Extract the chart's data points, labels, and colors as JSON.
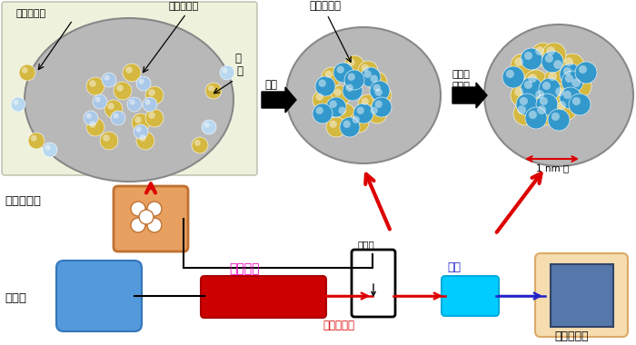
{
  "bg_color": "#ffffff",
  "top_label_suiyoeki": "水溶液中等",
  "top_label_kinzoku": "金属イオン",
  "top_label_genshijo": "原子状金属",
  "top_label_gokinkaRyusei": "合金化\n粒成長",
  "top_label_kangen": "還元",
  "top_label_1nm": "1 nm 級",
  "bottom_label_genryo": "原料＋担体",
  "bottom_label_kangenZai": "還元剤",
  "bottom_label_heater": "ヒーター",
  "bottom_label_hannobu": "反応部",
  "bottom_label_konetsukoatsu": "高温・高圧",
  "bottom_label_reikyaku": "冷却",
  "bottom_label_kaishutanku": "回収タンク",
  "heater_color": "#cc0000",
  "cooler_color": "#00ccff",
  "rawmat_color": "#e8a060",
  "reagent_color": "#5599dd",
  "tank_color": "#5577aa",
  "tank_bg_color": "#f5ddb0",
  "reactor_color": "#ffffff",
  "reactor_border": "#000000",
  "arrow_red": "#dd0000",
  "arrow_black": "#000000",
  "arrow_blue": "#2222cc",
  "heater_label_color": "#ee00bb",
  "reikyaku_label_color": "#2222cc",
  "konetsu_label_color": "#dd0000",
  "circle_bg": "#b8b8b8",
  "box1_bg": "#eef2dc"
}
